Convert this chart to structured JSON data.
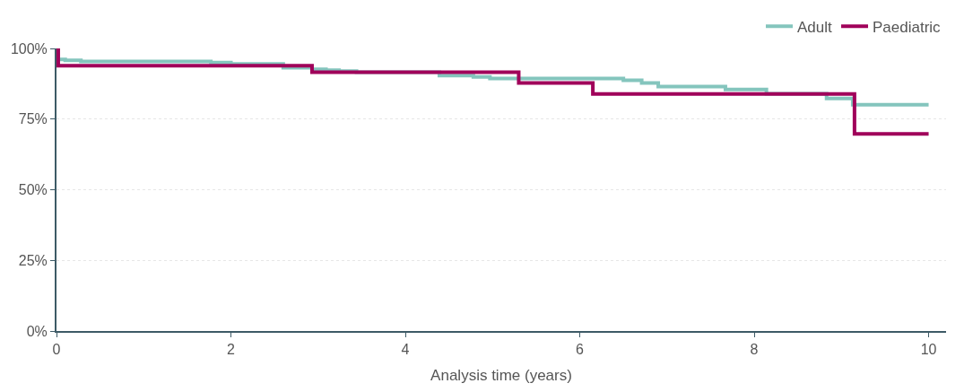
{
  "chart_data": {
    "type": "step",
    "xlabel": "Analysis time (years)",
    "xlim": [
      0,
      10.2
    ],
    "xticks": [
      0,
      2,
      4,
      6,
      8,
      10
    ],
    "ylim": [
      0,
      100
    ],
    "yticks": [
      {
        "value": 0,
        "label": "0%"
      },
      {
        "value": 25,
        "label": "25%"
      },
      {
        "value": 50,
        "label": "50%"
      },
      {
        "value": 75,
        "label": "75%"
      },
      {
        "value": 100,
        "label": "100%"
      }
    ],
    "grid": "y",
    "legend": "top right",
    "marker": "none",
    "line_style": "solid",
    "series": [
      {
        "name": "Adult",
        "color": "#84c5bd",
        "x": [
          0,
          0.02,
          0.1,
          0.28,
          1.77,
          2.0,
          2.6,
          2.93,
          3.09,
          3.24,
          3.44,
          4.39,
          4.78,
          4.97,
          6.5,
          6.71,
          6.9,
          7.67,
          8.14,
          8.83,
          9.13,
          10
        ],
        "values": [
          100,
          96.1,
          95.8,
          95.4,
          95.0,
          94.5,
          93.2,
          92.6,
          92.3,
          92.0,
          91.6,
          90.4,
          89.9,
          89.4,
          88.7,
          87.8,
          86.5,
          85.5,
          84.0,
          82.3,
          80.1,
          80.1
        ]
      },
      {
        "name": "Paediatric",
        "color": "#a0005a",
        "x": [
          0,
          0.02,
          2.93,
          5.3,
          6.15,
          9.15,
          10
        ],
        "values": [
          100,
          93.9,
          91.6,
          87.8,
          83.9,
          69.8,
          69.8
        ]
      }
    ]
  }
}
